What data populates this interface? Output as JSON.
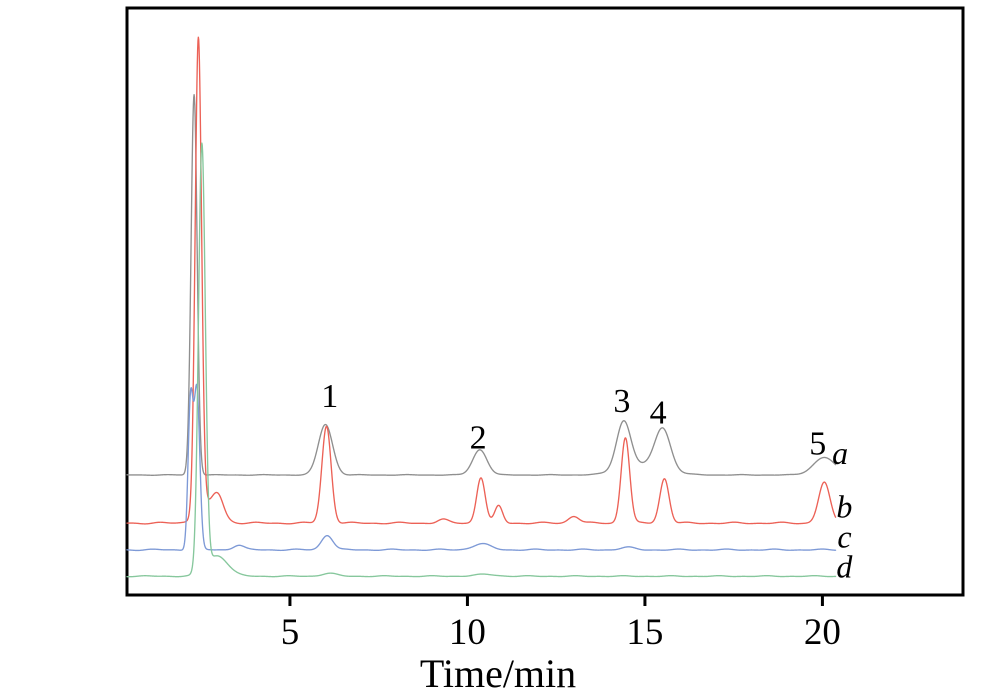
{
  "figure": {
    "background": "#ffffff",
    "frame_color": "#000000"
  },
  "chart_data": {
    "type": "line",
    "title": "",
    "xlabel": "Time/min",
    "ylabel": "",
    "x_range": [
      0.41,
      23.96
    ],
    "y_range": [
      0,
      100
    ],
    "x_ticks": [
      5,
      10,
      15,
      20
    ],
    "grid": false,
    "legend_position": "none",
    "description": "Overlaid HPLC chromatograms a-d with numbered peaks 1-5; intensity in arbitrary units, traces vertically offset",
    "series": [
      {
        "name": "a",
        "color": "#8f8f8f",
        "baseline": 20.45,
        "wobble": 0.04,
        "range": [
          0.41,
          20.38
        ],
        "peaks": [
          {
            "t": 2.3,
            "h": 64.8,
            "w": 0.085
          },
          {
            "t": 6.0,
            "h": 8.6,
            "w": 0.2
          },
          {
            "t": 10.35,
            "h": 4.3,
            "w": 0.2
          },
          {
            "t": 14.4,
            "h": 8.2,
            "w": 0.2
          },
          {
            "t": 15.5,
            "h": 7.0,
            "w": 0.22
          },
          {
            "t": 14.95,
            "h": 1.6,
            "w": 0.6
          },
          {
            "t": 20.05,
            "h": 3.0,
            "w": 0.3
          }
        ]
      },
      {
        "name": "b",
        "color": "#ec6156",
        "baseline": 12.25,
        "wobble": 0.1,
        "range": [
          0.41,
          20.38
        ],
        "peaks": [
          {
            "t": 2.42,
            "h": 81.0,
            "w": 0.09
          },
          {
            "t": 2.72,
            "h": 3.0,
            "w": 0.3
          },
          {
            "t": 2.98,
            "h": 3.0,
            "w": 0.15
          },
          {
            "t": 6.03,
            "h": 16.5,
            "w": 0.13
          },
          {
            "t": 9.3,
            "h": 0.6,
            "w": 0.15
          },
          {
            "t": 10.38,
            "h": 7.8,
            "w": 0.12
          },
          {
            "t": 10.88,
            "h": 2.9,
            "w": 0.11
          },
          {
            "t": 13.0,
            "h": 1.2,
            "w": 0.15
          },
          {
            "t": 14.45,
            "h": 14.6,
            "w": 0.12
          },
          {
            "t": 15.55,
            "h": 7.6,
            "w": 0.13
          },
          {
            "t": 20.05,
            "h": 6.9,
            "w": 0.16
          }
        ]
      },
      {
        "name": "c",
        "color": "#7d99d6",
        "baseline": 7.7,
        "wobble": 0.08,
        "range": [
          0.41,
          20.38
        ],
        "peaks": [
          {
            "t": 2.2,
            "h": 25.0,
            "w": 0.07
          },
          {
            "t": 2.38,
            "h": 27.0,
            "w": 0.08
          },
          {
            "t": 3.55,
            "h": 0.8,
            "w": 0.15
          },
          {
            "t": 6.05,
            "h": 2.5,
            "w": 0.16
          },
          {
            "t": 10.4,
            "h": 1.0,
            "w": 0.25
          },
          {
            "t": 14.5,
            "h": 0.4,
            "w": 0.2
          }
        ]
      },
      {
        "name": "d",
        "color": "#86c79c",
        "baseline": 3.2,
        "wobble": 0.06,
        "range": [
          0.41,
          20.38
        ],
        "peaks": [
          {
            "t": 2.52,
            "h": 72.5,
            "w": 0.095
          },
          {
            "t": 2.95,
            "h": 3.5,
            "w": 0.3
          },
          {
            "t": 6.1,
            "h": 0.5,
            "w": 0.2
          },
          {
            "t": 10.5,
            "h": 0.3,
            "w": 0.3
          }
        ]
      }
    ],
    "peak_labels": [
      {
        "text": "1",
        "t": 6.12,
        "y": 32.0
      },
      {
        "text": "2",
        "t": 10.3,
        "y": 25.0
      },
      {
        "text": "3",
        "t": 14.35,
        "y": 31.2
      },
      {
        "text": "4",
        "t": 15.37,
        "y": 29.2
      },
      {
        "text": "5",
        "t": 19.87,
        "y": 23.9
      }
    ],
    "series_labels": [
      {
        "text": "a",
        "t": 20.5,
        "y": 22.3
      },
      {
        "text": "b",
        "t": 20.62,
        "y": 13.2
      },
      {
        "text": "c",
        "t": 20.62,
        "y": 8.1
      },
      {
        "text": "d",
        "t": 20.62,
        "y": 3.0
      }
    ]
  }
}
